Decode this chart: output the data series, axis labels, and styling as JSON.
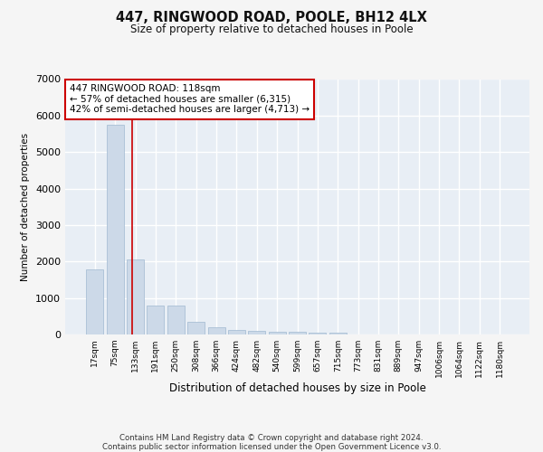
{
  "title": "447, RINGWOOD ROAD, POOLE, BH12 4LX",
  "subtitle": "Size of property relative to detached houses in Poole",
  "xlabel": "Distribution of detached houses by size in Poole",
  "ylabel": "Number of detached properties",
  "categories": [
    "17sqm",
    "75sqm",
    "133sqm",
    "191sqm",
    "250sqm",
    "308sqm",
    "366sqm",
    "424sqm",
    "482sqm",
    "540sqm",
    "599sqm",
    "657sqm",
    "715sqm",
    "773sqm",
    "831sqm",
    "889sqm",
    "947sqm",
    "1006sqm",
    "1064sqm",
    "1122sqm",
    "1180sqm"
  ],
  "values": [
    1780,
    5760,
    2060,
    790,
    790,
    350,
    200,
    120,
    100,
    85,
    70,
    55,
    50,
    0,
    0,
    0,
    0,
    0,
    0,
    0,
    0
  ],
  "bar_color": "#ccd9e8",
  "bar_edge_color": "#a0b8d0",
  "vline_x": 1.85,
  "vline_color": "#cc0000",
  "annotation_text": "447 RINGWOOD ROAD: 118sqm\n← 57% of detached houses are smaller (6,315)\n42% of semi-detached houses are larger (4,713) →",
  "annotation_box_facecolor": "white",
  "annotation_box_edgecolor": "#cc0000",
  "ylim": [
    0,
    7000
  ],
  "yticks": [
    0,
    1000,
    2000,
    3000,
    4000,
    5000,
    6000,
    7000
  ],
  "footer_text": "Contains HM Land Registry data © Crown copyright and database right 2024.\nContains public sector information licensed under the Open Government Licence v3.0.",
  "fig_facecolor": "#f5f5f5",
  "plot_facecolor": "#e8eef5",
  "grid_color": "#ffffff"
}
